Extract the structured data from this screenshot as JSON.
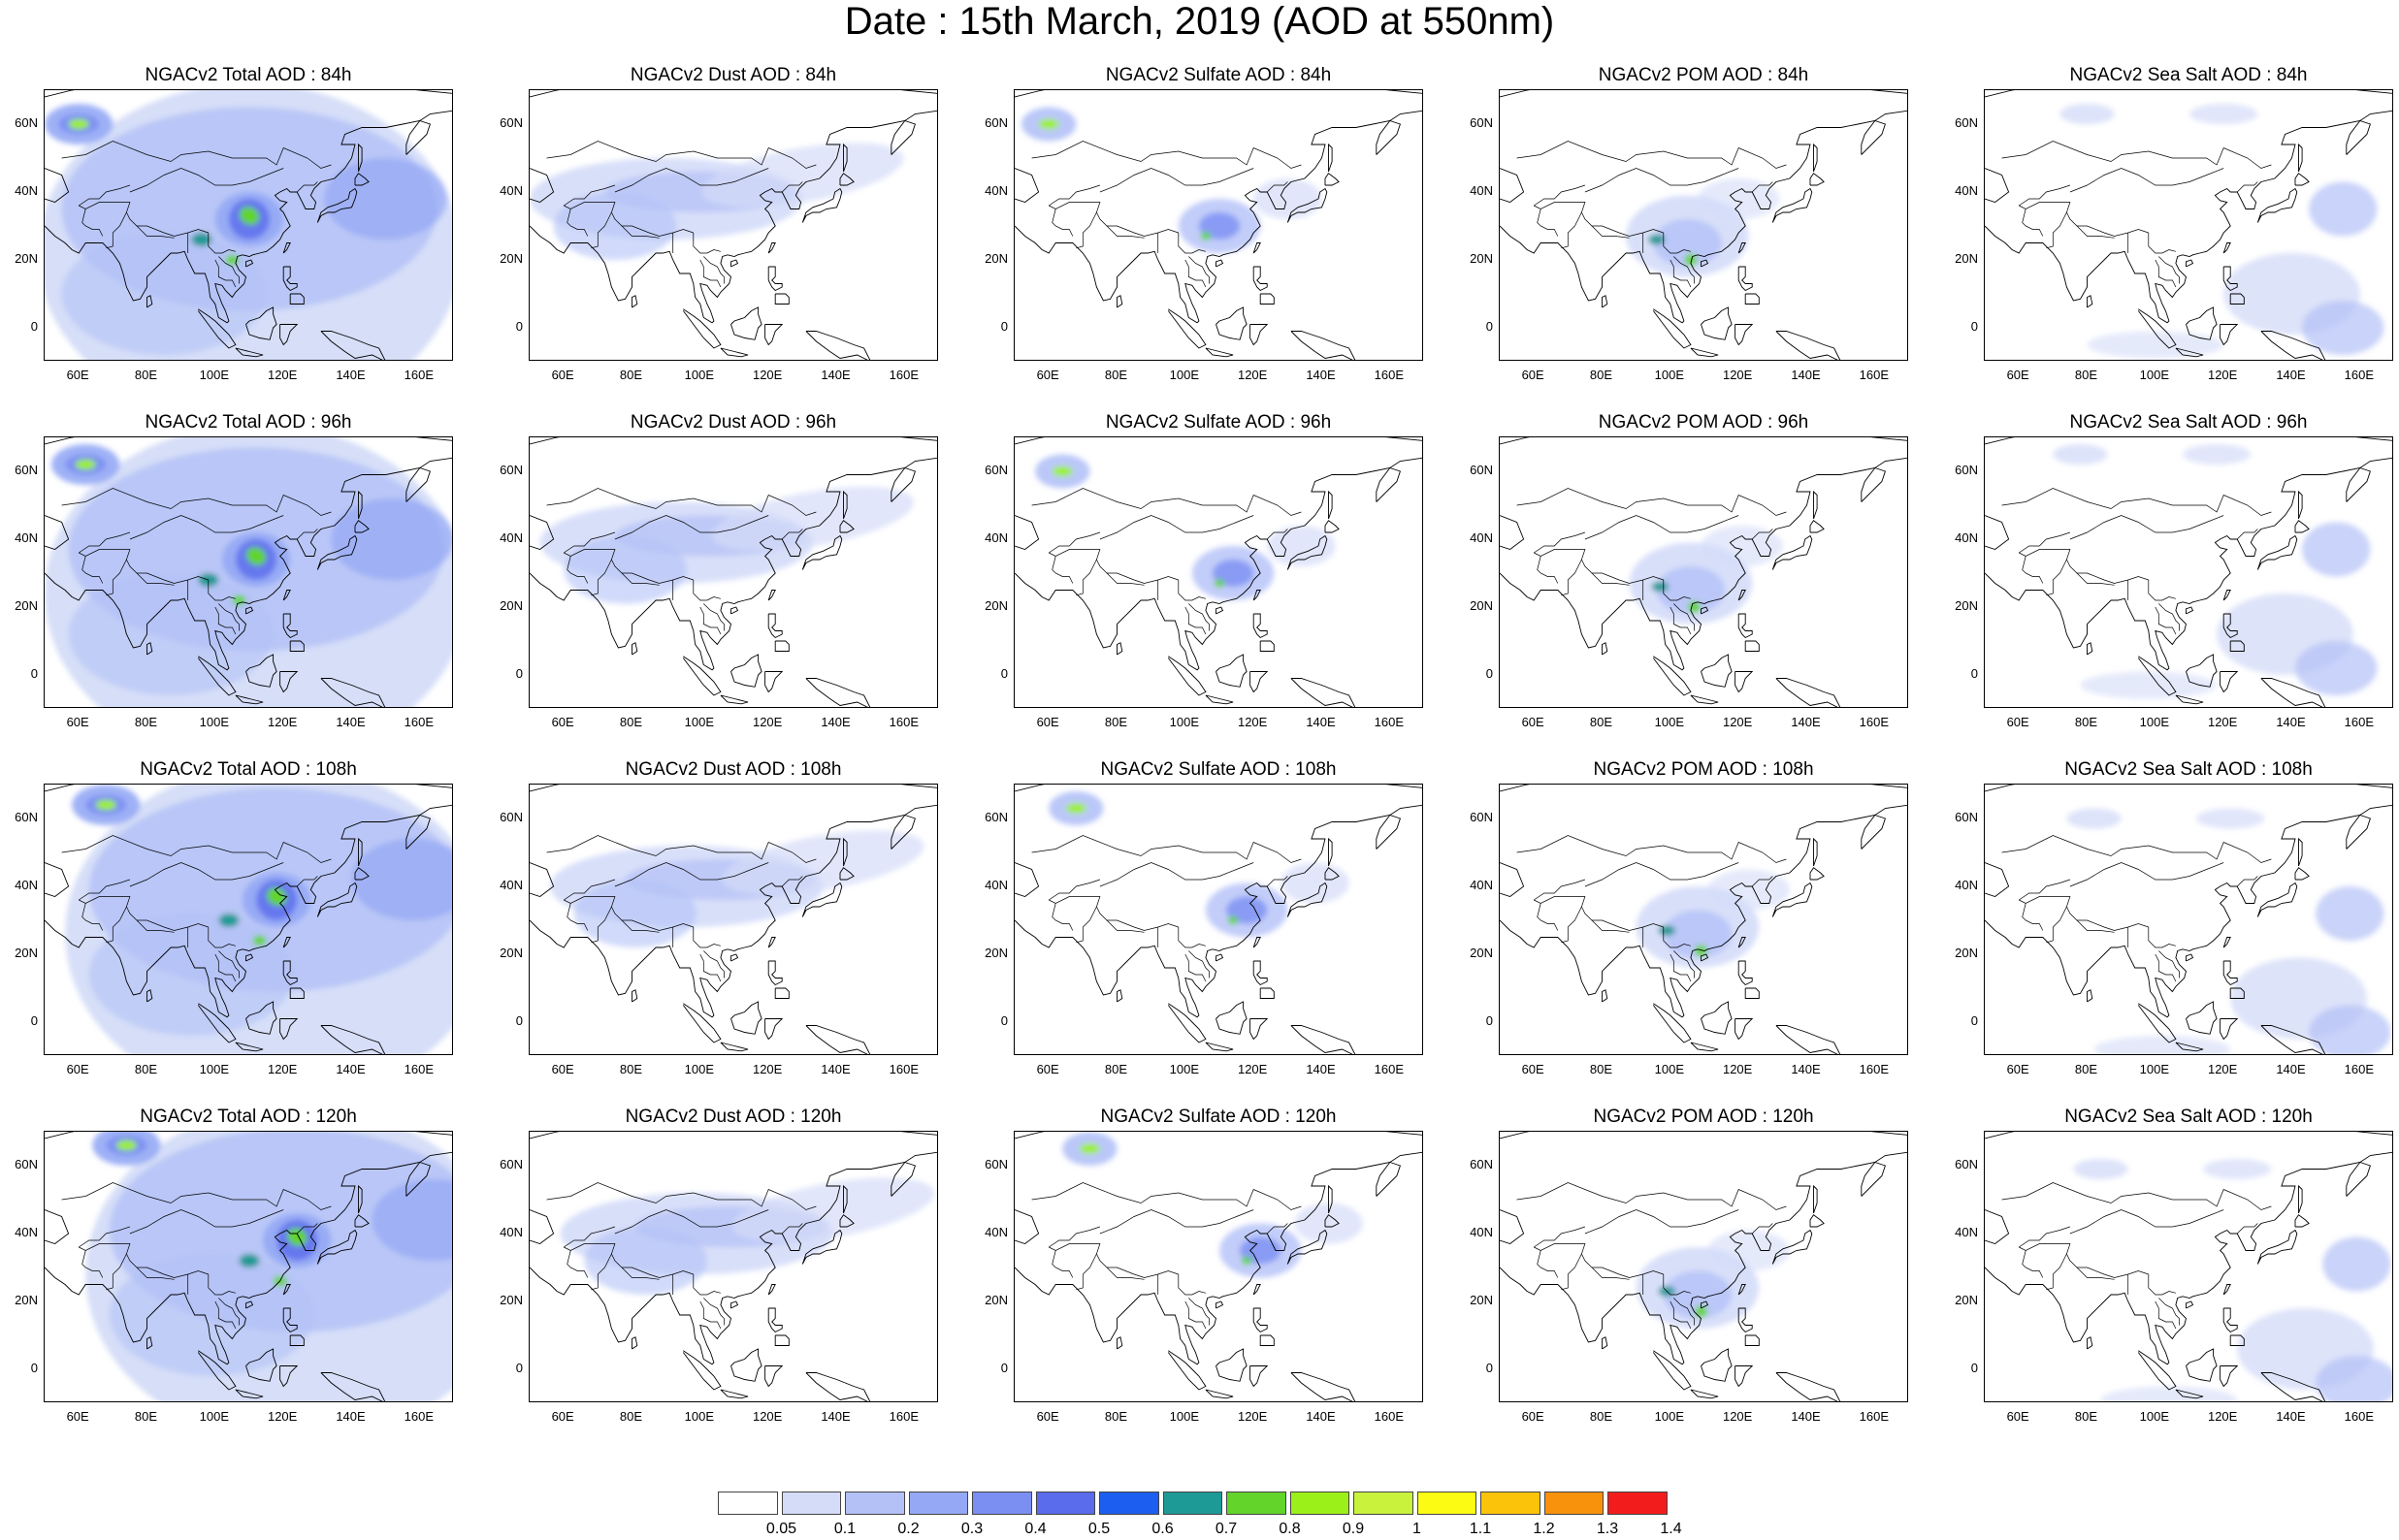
{
  "title": "Date : 15th March, 2019 (AOD at 550nm)",
  "axes": {
    "x_ticks": [
      "60E",
      "80E",
      "100E",
      "120E",
      "140E",
      "160E"
    ],
    "y_ticks": [
      "60N",
      "40N",
      "20N",
      "0"
    ]
  },
  "colorbar": {
    "labels": [
      "0.05",
      "0.1",
      "0.2",
      "0.3",
      "0.4",
      "0.5",
      "0.6",
      "0.7",
      "0.8",
      "0.9",
      "1",
      "1.1",
      "1.2",
      "1.3",
      "1.4"
    ],
    "colors": [
      "#ffffff",
      "#d4dcf8",
      "#b3c1f7",
      "#94a8f5",
      "#7b8ef2",
      "#5a6bec",
      "#1b5ef0",
      "#1d9a95",
      "#62d42a",
      "#9cf01a",
      "#c9f23c",
      "#fbfb14",
      "#fbc40a",
      "#f8920c",
      "#f31c1c"
    ]
  },
  "panels": [
    {
      "title": "NGACv2 Total AOD : 84h",
      "kind": "total"
    },
    {
      "title": "NGACv2 Dust AOD : 84h",
      "kind": "dust"
    },
    {
      "title": "NGACv2 Sulfate AOD : 84h",
      "kind": "sulfate"
    },
    {
      "title": "NGACv2 POM AOD : 84h",
      "kind": "pom"
    },
    {
      "title": "NGACv2 Sea Salt AOD : 84h",
      "kind": "seasalt"
    },
    {
      "title": "NGACv2 Total AOD : 96h",
      "kind": "total"
    },
    {
      "title": "NGACv2 Dust AOD : 96h",
      "kind": "dust"
    },
    {
      "title": "NGACv2 Sulfate AOD : 96h",
      "kind": "sulfate"
    },
    {
      "title": "NGACv2 POM AOD : 96h",
      "kind": "pom"
    },
    {
      "title": "NGACv2 Sea Salt AOD : 96h",
      "kind": "seasalt"
    },
    {
      "title": "NGACv2 Total AOD : 108h",
      "kind": "total"
    },
    {
      "title": "NGACv2 Dust AOD : 108h",
      "kind": "dust"
    },
    {
      "title": "NGACv2 Sulfate AOD : 108h",
      "kind": "sulfate"
    },
    {
      "title": "NGACv2 POM AOD : 108h",
      "kind": "pom"
    },
    {
      "title": "NGACv2 Sea Salt AOD : 108h",
      "kind": "seasalt"
    },
    {
      "title": "NGACv2 Total AOD : 120h",
      "kind": "total"
    },
    {
      "title": "NGACv2 Dust AOD : 120h",
      "kind": "dust"
    },
    {
      "title": "NGACv2 Sulfate AOD : 120h",
      "kind": "sulfate"
    },
    {
      "title": "NGACv2 POM AOD : 120h",
      "kind": "pom"
    },
    {
      "title": "NGACv2 Sea Salt  AOD : 120h",
      "kind": "seasalt"
    }
  ]
}
